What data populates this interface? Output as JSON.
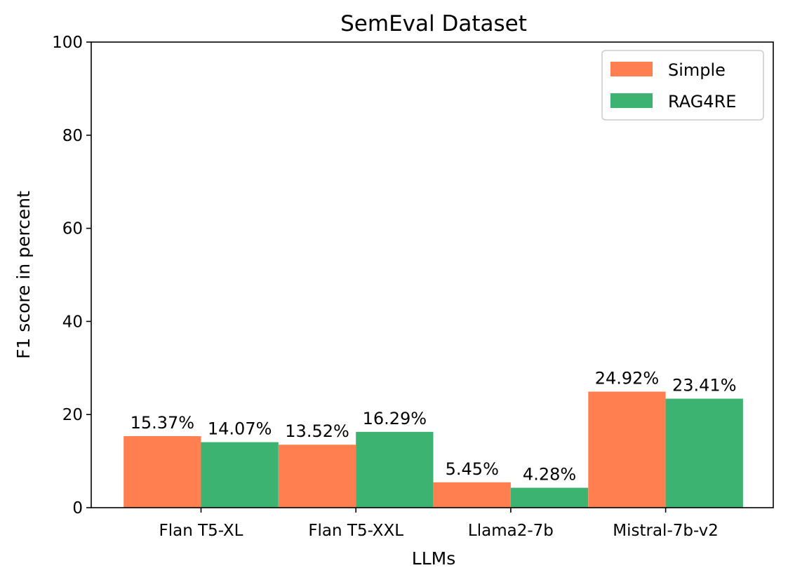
{
  "chart_data": {
    "type": "bar",
    "title": "SemEval Dataset",
    "xlabel": "LLMs",
    "ylabel": "F1 score in percent",
    "categories": [
      "Flan T5-XL",
      "Flan T5-XXL",
      "Llama2-7b",
      "Mistral-7b-v2"
    ],
    "series": [
      {
        "name": "Simple",
        "values": [
          15.37,
          13.52,
          5.45,
          24.92
        ],
        "labels": [
          "15.37%",
          "13.52%",
          "5.45%",
          "24.92%"
        ],
        "color": "#ff7f50"
      },
      {
        "name": "RAG4RE",
        "values": [
          14.07,
          16.29,
          4.28,
          23.41
        ],
        "labels": [
          "14.07%",
          "16.29%",
          "4.28%",
          "23.41%"
        ],
        "color": "#3cb371"
      }
    ],
    "ylim": [
      0,
      100
    ],
    "yticks": [
      0,
      20,
      40,
      60,
      80,
      100
    ],
    "grid": false,
    "legend_position": "top-right"
  }
}
